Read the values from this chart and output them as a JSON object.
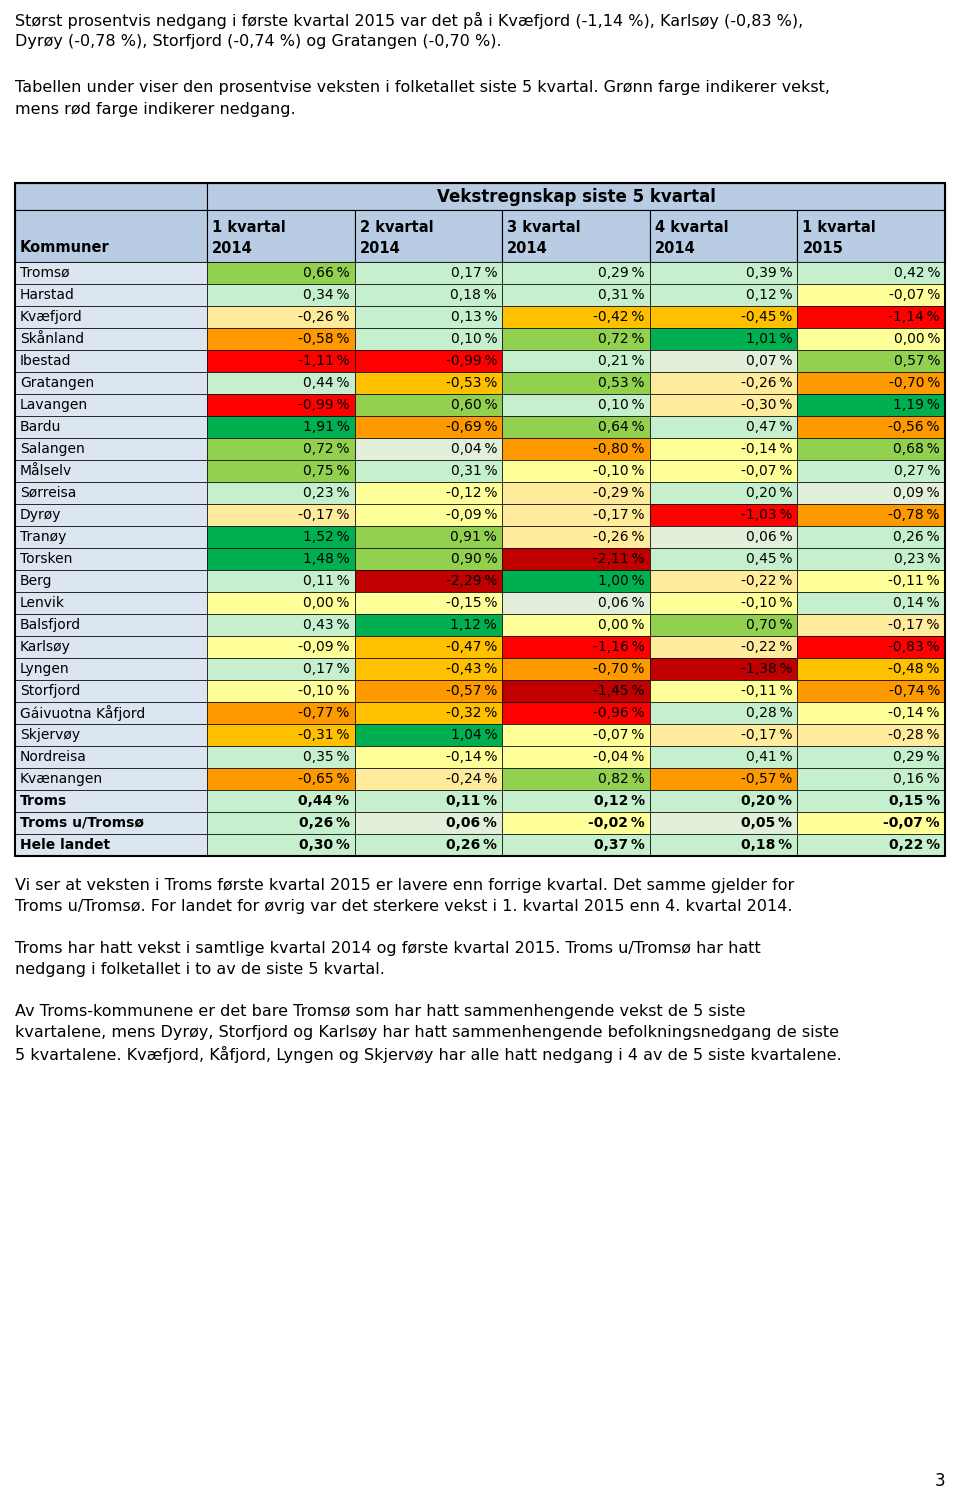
{
  "title_text": "Vekstregnskap siste 5 kvartal",
  "col_headers": [
    "1 kvartal\n2014",
    "2 kvartal\n2014",
    "3 kvartal\n2014",
    "4 kvartal\n2014",
    "1 kvartal\n2015"
  ],
  "row_labels": [
    "Tromsø",
    "Harstad",
    "Kvæfjord",
    "Skånland",
    "Ibestad",
    "Gratangen",
    "Lavangen",
    "Bardu",
    "Salangen",
    "Målselv",
    "Sørreisa",
    "Dyrøy",
    "Tranøy",
    "Torsken",
    "Berg",
    "Lenvik",
    "Balsfjord",
    "Karlsøy",
    "Lyngen",
    "Storfjord",
    "Gáivuotna Kåfjord",
    "Skjervøy",
    "Nordreisa",
    "Kvænangen",
    "Troms",
    "Troms u/Tromsø",
    "Hele landet"
  ],
  "bold_rows": [
    24,
    25,
    26
  ],
  "values": [
    [
      0.66,
      0.17,
      0.29,
      0.39,
      0.42
    ],
    [
      0.34,
      0.18,
      0.31,
      0.12,
      -0.07
    ],
    [
      -0.26,
      0.13,
      -0.42,
      -0.45,
      -1.14
    ],
    [
      -0.58,
      0.1,
      0.72,
      1.01,
      0.0
    ],
    [
      -1.11,
      -0.99,
      0.21,
      0.07,
      0.57
    ],
    [
      0.44,
      -0.53,
      0.53,
      -0.26,
      -0.7
    ],
    [
      -0.99,
      0.6,
      0.1,
      -0.3,
      1.19
    ],
    [
      1.91,
      -0.69,
      0.64,
      0.47,
      -0.56
    ],
    [
      0.72,
      0.04,
      -0.8,
      -0.14,
      0.68
    ],
    [
      0.75,
      0.31,
      -0.1,
      -0.07,
      0.27
    ],
    [
      0.23,
      -0.12,
      -0.29,
      0.2,
      0.09
    ],
    [
      -0.17,
      -0.09,
      -0.17,
      -1.03,
      -0.78
    ],
    [
      1.52,
      0.91,
      -0.26,
      0.06,
      0.26
    ],
    [
      1.48,
      0.9,
      -2.11,
      0.45,
      0.23
    ],
    [
      0.11,
      -2.29,
      1.0,
      -0.22,
      -0.11
    ],
    [
      0.0,
      -0.15,
      0.06,
      -0.1,
      0.14
    ],
    [
      0.43,
      1.12,
      0.0,
      0.7,
      -0.17
    ],
    [
      -0.09,
      -0.47,
      -1.16,
      -0.22,
      -0.83
    ],
    [
      0.17,
      -0.43,
      -0.7,
      -1.38,
      -0.48
    ],
    [
      -0.1,
      -0.57,
      -1.45,
      -0.11,
      -0.74
    ],
    [
      -0.77,
      -0.32,
      -0.96,
      0.28,
      -0.14
    ],
    [
      -0.31,
      1.04,
      -0.07,
      -0.17,
      -0.28
    ],
    [
      0.35,
      -0.14,
      -0.04,
      0.41,
      0.29
    ],
    [
      -0.65,
      -0.24,
      0.82,
      -0.57,
      0.16
    ],
    [
      0.44,
      0.11,
      0.12,
      0.2,
      0.15
    ],
    [
      0.26,
      0.06,
      -0.02,
      0.05,
      -0.07
    ],
    [
      0.3,
      0.26,
      0.37,
      0.18,
      0.22
    ]
  ],
  "intro_line1": "Størst prosentvis nedgang i første kvartal 2015 var det på i Kvæfjord (-1,14 %), Karlsøy (-0,83 %),",
  "intro_line2": "Dyrøy (-0,78 %), Storfjord (-0,74 %) og Gratangen (-0,70 %).",
  "mid_line1": "Tabellen under viser den prosentvise veksten i folketallet siste 5 kvartal. Grønn farge indikerer vekst,",
  "mid_line2": "mens rød farge indikerer nedgang.",
  "outro_text1_l1": "Vi ser at veksten i Troms første kvartal 2015 er lavere enn forrige kvartal. Det samme gjelder for",
  "outro_text1_l2": "Troms u/Tromsø. For landet for øvrig var det sterkere vekst i 1. kvartal 2015 enn 4. kvartal 2014.",
  "outro_text2_l1": "Troms har hatt vekst i samtlige kvartal 2014 og første kvartal 2015. Troms u/Tromsø har hatt",
  "outro_text2_l2": "nedgang i folketallet i to av de siste 5 kvartal.",
  "outro_text3_l1": "Av Troms-kommunene er det bare Tromsø som har hatt sammenhengende vekst de 5 siste",
  "outro_text3_l2": "kvartalene, mens Dyrøy, Storfjord og Karlsøy har hatt sammenhengende befolkningsnedgang de siste",
  "outro_text3_l3": "5 kvartalene. Kvæfjord, Kåfjord, Lyngen og Skjervøy har alle hatt nedgang i 4 av de 5 siste kvartalene.",
  "page_number": "3",
  "header_bg": "#b8cce4",
  "label_col_bg": "#dce6f1",
  "table_border_color": "#000000"
}
